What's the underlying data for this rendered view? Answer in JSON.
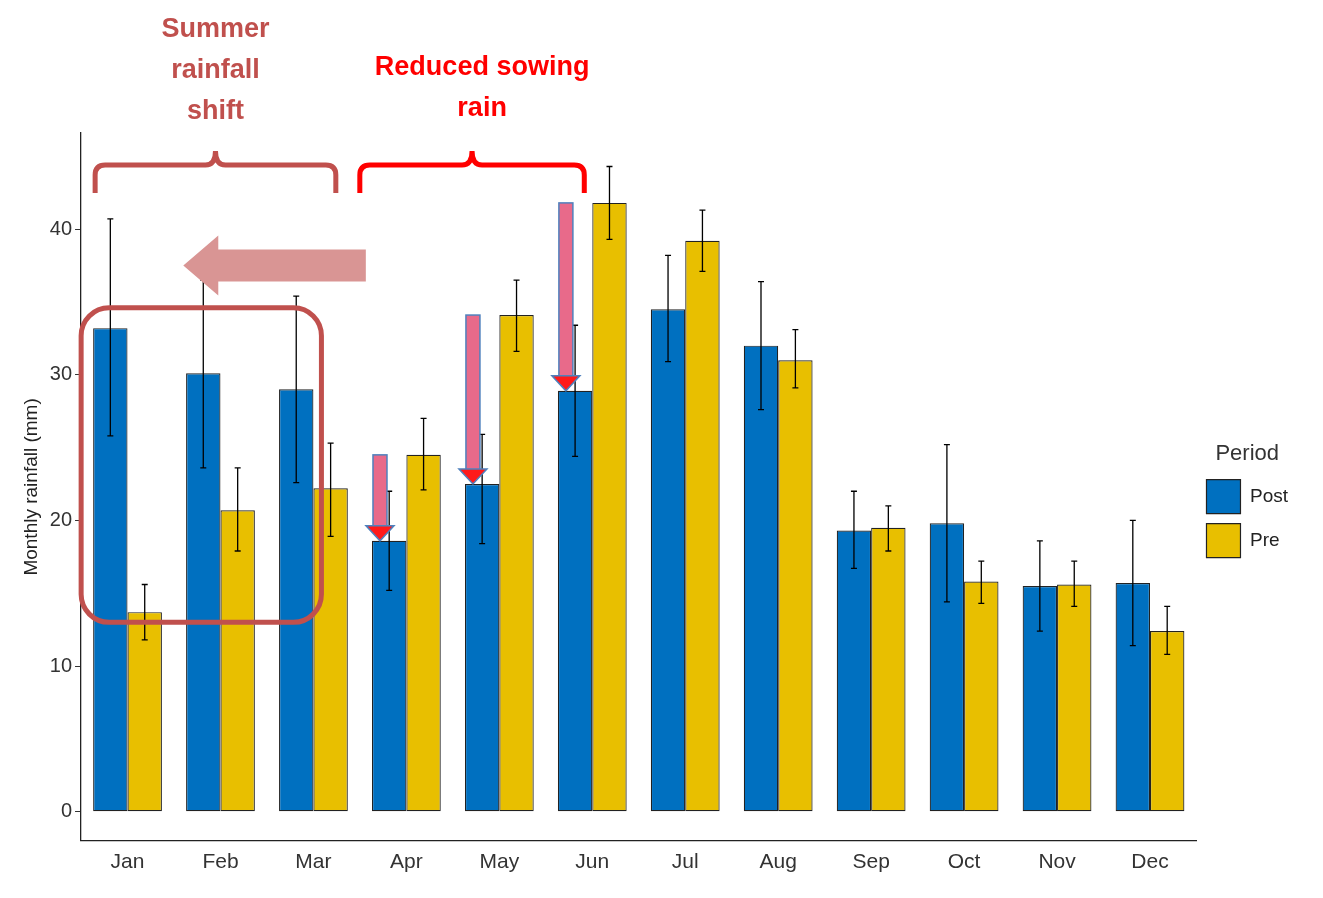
{
  "chart_data": {
    "type": "bar",
    "categories": [
      "Jan",
      "Feb",
      "Mar",
      "Apr",
      "May",
      "Jun",
      "Jul",
      "Aug",
      "Sep",
      "Oct",
      "Nov",
      "Dec"
    ],
    "ylabel": "Monthly rainfall (mm)",
    "legend_title": "Period",
    "legend": "right",
    "grid": false,
    "ylim": [
      -2,
      46.6
    ],
    "yticks": [
      0,
      10,
      20,
      30,
      40
    ],
    "series": [
      {
        "name": "Post",
        "color": "#0070c0",
        "values": [
          33.2,
          30.1,
          29.0,
          18.6,
          22.5,
          28.9,
          34.5,
          32.0,
          19.3,
          19.8,
          15.5,
          15.7
        ],
        "errors": [
          [
            25.8,
            40.7
          ],
          [
            23.6,
            36.5
          ],
          [
            22.6,
            35.4
          ],
          [
            15.2,
            22.0
          ],
          [
            18.4,
            25.9
          ],
          [
            24.4,
            33.4
          ],
          [
            30.9,
            38.2
          ],
          [
            27.6,
            36.4
          ],
          [
            16.7,
            22.0
          ],
          [
            14.4,
            25.2
          ],
          [
            12.4,
            18.6
          ],
          [
            11.4,
            20.0
          ]
        ]
      },
      {
        "name": "Pre",
        "color": "#e8bf00",
        "values": [
          13.7,
          20.7,
          22.2,
          24.5,
          34.1,
          41.8,
          39.2,
          31.0,
          19.5,
          15.8,
          15.6,
          12.4
        ],
        "errors": [
          [
            11.8,
            15.6
          ],
          [
            17.9,
            23.6
          ],
          [
            18.9,
            25.3
          ],
          [
            22.1,
            27.0
          ],
          [
            31.6,
            36.5
          ],
          [
            39.3,
            44.3
          ],
          [
            37.1,
            41.3
          ],
          [
            29.1,
            33.1
          ],
          [
            17.9,
            21.0
          ],
          [
            14.3,
            17.2
          ],
          [
            14.1,
            17.2
          ],
          [
            10.8,
            14.1
          ]
        ]
      }
    ],
    "annotations": [
      "Summer rainfall shift",
      "Reduced sowing rain"
    ]
  }
}
